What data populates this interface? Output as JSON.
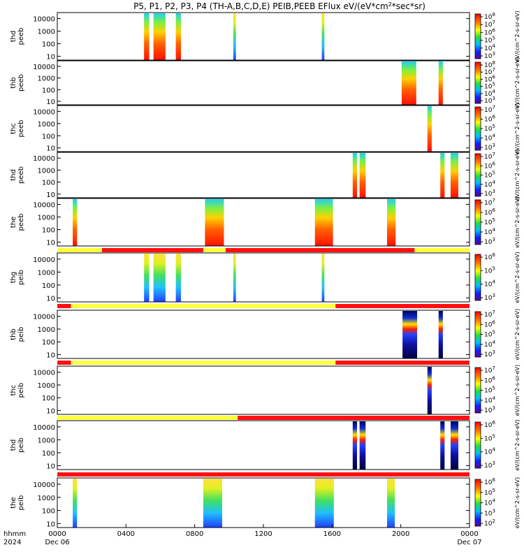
{
  "chart_data": {
    "type": "heatmap",
    "title": "P5, P1, P2, P3, P4 (TH-A,B,C,D,E) PEIB,PEEB EFlux eV/(eV*cm^2*sec*sr)",
    "title_parts": {
      "main": "P5, P1, P2, P3, P4 (TH-A,B,C,D,E) PEIB,PEEB EFlux eV/(eV*cm",
      "sup": "2",
      "tail": "*sec*sr)"
    },
    "x_axis": {
      "range_hours": [
        0,
        24
      ],
      "ticks": [
        {
          "hour": 0,
          "label": "0000",
          "sub": "Dec 06"
        },
        {
          "hour": 4,
          "label": "0400",
          "sub": ""
        },
        {
          "hour": 8,
          "label": "0800",
          "sub": ""
        },
        {
          "hour": 12,
          "label": "1200",
          "sub": ""
        },
        {
          "hour": 16,
          "label": "1600",
          "sub": ""
        },
        {
          "hour": 20,
          "label": "2000",
          "sub": ""
        },
        {
          "hour": 24,
          "label": "0000",
          "sub": "Dec 07"
        }
      ],
      "row_labels": [
        "hhmm",
        "2024"
      ]
    },
    "y_axis": {
      "scale": "log",
      "range": [
        5,
        30000
      ],
      "ticks": [
        10,
        100,
        1000,
        10000
      ],
      "tick_labels": [
        "10",
        "100",
        "1000",
        "10000"
      ]
    },
    "colors": {
      "red_bar": "#ff1010",
      "yellow_bar": "#ffff40",
      "frame": "#000000"
    },
    "panels": [
      {
        "label": [
          "thd",
          "peeb"
        ],
        "colorbar": {
          "ticks": [
            "10^3",
            "10^4",
            "10^5",
            "10^6",
            "10^7",
            "10^8"
          ],
          "unit": "eV/(cm^2-s-sr-eV)"
        },
        "segments": [
          [
            5.05,
            5.35,
            "hot"
          ],
          [
            5.6,
            6.3,
            "hot"
          ],
          [
            6.9,
            7.2,
            "hot"
          ],
          [
            10.25,
            10.4,
            "cool"
          ],
          [
            15.4,
            15.55,
            "cool"
          ]
        ]
      },
      {
        "label": [
          "thb",
          "peeb"
        ],
        "colorbar": {
          "ticks": [
            "10^3",
            "10^4",
            "10^5",
            "10^6",
            "10^7",
            "10^8"
          ],
          "unit": "eV/(cm^2-s-sr-eV)"
        },
        "segments": [
          [
            20.05,
            20.9,
            "hot"
          ],
          [
            22.2,
            22.45,
            "hot"
          ]
        ]
      },
      {
        "label": [
          "thc",
          "peeb"
        ],
        "colorbar": {
          "ticks": [
            "10^3",
            "10^4",
            "10^5",
            "10^6",
            "10^7"
          ],
          "unit": "eV/(cm^2-s-sr-eV)"
        },
        "segments": [
          [
            21.55,
            21.8,
            "hot"
          ]
        ]
      },
      {
        "label": [
          "thd",
          "peeb"
        ],
        "colorbar": {
          "ticks": [
            "10^3",
            "10^4",
            "10^5",
            "10^6",
            "10^7"
          ],
          "unit": "eV/(cm^2-s-sr-eV)"
        },
        "segments": [
          [
            17.2,
            17.45,
            "hot"
          ],
          [
            17.6,
            17.95,
            "hot"
          ],
          [
            22.3,
            22.55,
            "hot"
          ],
          [
            22.9,
            23.35,
            "hot"
          ]
        ]
      },
      {
        "label": [
          "the",
          "peeb"
        ],
        "colorbar": {
          "ticks": [
            "10^3",
            "10^4",
            "10^5",
            "10^6",
            "10^7"
          ],
          "unit": "eV/(cm^2-s-sr-eV)"
        },
        "segments": [
          [
            0.9,
            1.15,
            "hot"
          ],
          [
            8.6,
            9.7,
            "hot"
          ],
          [
            15.0,
            16.05,
            "hot"
          ],
          [
            19.2,
            19.7,
            "hot"
          ]
        ],
        "mode_bar": [
          [
            0,
            2.6,
            "yellow"
          ],
          [
            2.6,
            8.5,
            "red"
          ],
          [
            8.5,
            9.8,
            "yellow"
          ],
          [
            9.8,
            20.8,
            "red"
          ],
          [
            20.8,
            24,
            "yellow"
          ]
        ]
      },
      {
        "label": [
          "thg",
          "peib"
        ],
        "colorbar": {
          "ticks": [
            "10^3",
            "10^4",
            "10^5",
            "10^6"
          ],
          "unit": "eV/(cm^2-s-sr-eV)"
        },
        "segments": [
          [
            5.05,
            5.35,
            "cool"
          ],
          [
            5.6,
            6.3,
            "cool"
          ],
          [
            6.9,
            7.2,
            "cool"
          ],
          [
            10.25,
            10.4,
            "cool"
          ],
          [
            15.4,
            15.55,
            "cool"
          ]
        ],
        "mode_bar": [
          [
            0,
            0.8,
            "red"
          ],
          [
            0.8,
            16.2,
            "yellow"
          ],
          [
            16.2,
            24,
            "red"
          ]
        ]
      },
      {
        "label": [
          "thb",
          "peib"
        ],
        "colorbar": {
          "ticks": [
            "10^3",
            "10^4",
            "10^5",
            "10^6",
            "10^7"
          ],
          "unit": "eV/(cm^2-s-sr-eV)"
        },
        "segments": [
          [
            20.1,
            20.95,
            "dark"
          ],
          [
            22.2,
            22.45,
            "dark"
          ]
        ],
        "mode_bar": [
          [
            0,
            0.8,
            "red"
          ],
          [
            0.8,
            16.2,
            "yellow"
          ],
          [
            16.2,
            24,
            "red"
          ]
        ]
      },
      {
        "label": [
          "thc",
          "peib"
        ],
        "colorbar": {
          "ticks": [
            "10^3",
            "10^4",
            "10^5",
            "10^6",
            "10^7"
          ],
          "unit": "eV/(cm^2-s-sr-eV)"
        },
        "segments": [
          [
            21.55,
            21.8,
            "dark"
          ]
        ],
        "mode_bar": [
          [
            0,
            10.5,
            "yellow"
          ],
          [
            10.5,
            24,
            "red"
          ]
        ]
      },
      {
        "label": [
          "thd",
          "peib"
        ],
        "colorbar": {
          "ticks": [
            "10^3",
            "10^4",
            "10^5",
            "10^6"
          ],
          "unit": "eV/(cm^2-s-sr-eV)"
        },
        "segments": [
          [
            17.2,
            17.45,
            "dark"
          ],
          [
            17.6,
            17.95,
            "dark"
          ],
          [
            22.3,
            22.55,
            "dark"
          ],
          [
            22.9,
            23.35,
            "dark"
          ]
        ],
        "mode_bar": [
          [
            0,
            24,
            "red"
          ]
        ]
      },
      {
        "label": [
          "the",
          "peib"
        ],
        "colorbar": {
          "ticks": [
            "10^2",
            "10^3",
            "10^4",
            "10^5",
            "10^6"
          ],
          "unit": "eV/(cm^2-s-sr-eV)"
        },
        "segments": [
          [
            0.9,
            1.15,
            "cool"
          ],
          [
            8.5,
            9.6,
            "cool"
          ],
          [
            15.0,
            16.1,
            "cool"
          ],
          [
            19.2,
            19.65,
            "cool"
          ]
        ]
      }
    ]
  }
}
